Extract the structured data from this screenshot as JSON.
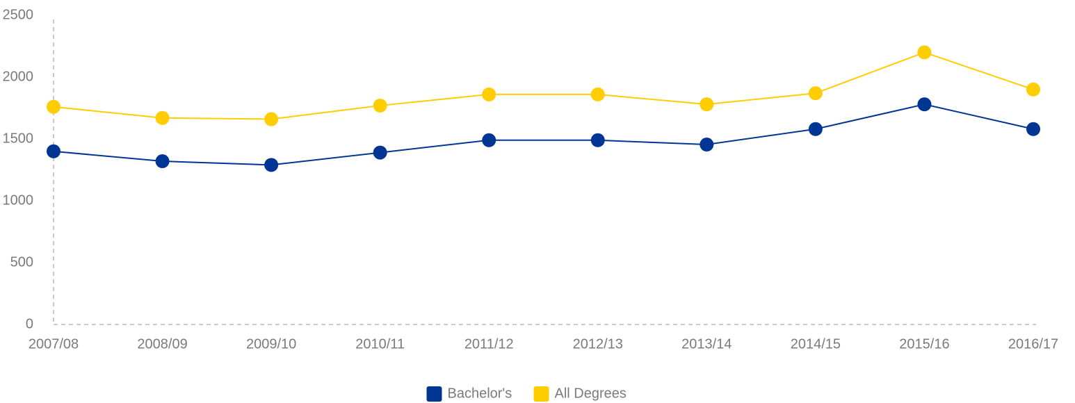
{
  "chart_data": {
    "type": "line",
    "categories": [
      "2007/08",
      "2008/09",
      "2009/10",
      "2010/11",
      "2011/12",
      "2012/13",
      "2013/14",
      "2014/15",
      "2015/16",
      "2016/17"
    ],
    "series": [
      {
        "name": "Bachelor's",
        "color": "#003594",
        "values": [
          1400,
          1320,
          1290,
          1390,
          1490,
          1490,
          1455,
          1580,
          1780,
          1580
        ]
      },
      {
        "name": "All Degrees",
        "color": "#ffcd00",
        "values": [
          1760,
          1670,
          1660,
          1770,
          1860,
          1860,
          1780,
          1870,
          2200,
          1900
        ]
      }
    ],
    "ylim": [
      0,
      2500
    ],
    "yticks": [
      0,
      500,
      1000,
      1500,
      2000,
      2500
    ],
    "grid": false,
    "legend": "bottom"
  }
}
